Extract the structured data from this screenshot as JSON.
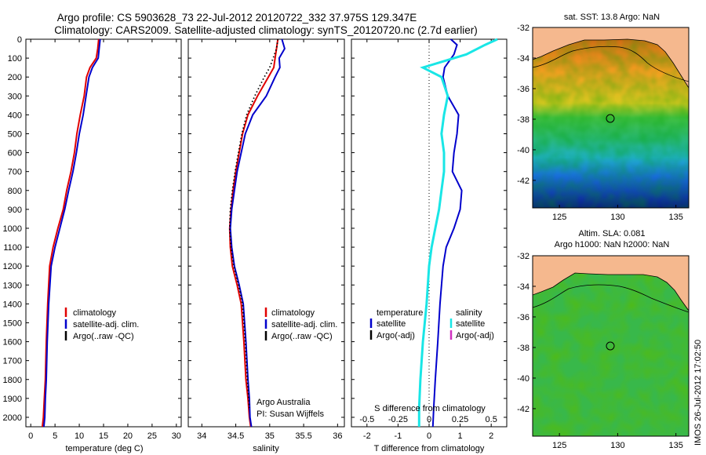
{
  "title": {
    "line1": "Argo profile: CS 5903628_73 22-Jul-2012 20120722_332 37.975S 129.347E",
    "line2": "Climatology: CARS2009. Satellite-adjusted climatology: synTS_20120720.nc (2.7d earlier)"
  },
  "colors": {
    "climatology": "#e00000",
    "satellite": "#0000cc",
    "argo": "#000000",
    "salinity_satellite": "#19e6e6",
    "salinity_argo": "#d030c0"
  },
  "depth_axis": {
    "ylim": [
      0,
      2050
    ],
    "ticks": [
      "0",
      "100",
      "200",
      "300",
      "400",
      "500",
      "600",
      "700",
      "800",
      "900",
      "1000",
      "1100",
      "1200",
      "1300",
      "1400",
      "1500",
      "1600",
      "1700",
      "1800",
      "1900",
      "2000"
    ]
  },
  "legend": {
    "climatology": "climatology",
    "satellite": "satellite-adj. clim.",
    "argo": "Argo(..raw -QC)",
    "temperature_header": "temperature",
    "salinity_header": "salinity",
    "satellite_short": "satellite",
    "argo_adj": "Argo(-adj)"
  },
  "credits": {
    "line1": "Argo Australia",
    "line2": "PI: Susan Wijffels"
  },
  "chart_data": [
    {
      "type": "line",
      "xlabel": "temperature (deg C)",
      "xlim": [
        -1,
        31
      ],
      "xticks": [
        "0",
        "5",
        "10",
        "15",
        "20",
        "25",
        "30"
      ],
      "ylim": [
        2050,
        0
      ],
      "series": [
        {
          "name": "climatology",
          "x": [
            14.0,
            13.8,
            13.5,
            12.2,
            11.5,
            11.0,
            10.2,
            9.5,
            9.0,
            8.3,
            7.4,
            6.7,
            5.6,
            4.6,
            3.9,
            3.5,
            3.2,
            3.0,
            2.8,
            2.6,
            2.4
          ],
          "y": [
            0,
            50,
            100,
            150,
            200,
            300,
            400,
            500,
            600,
            700,
            800,
            900,
            1000,
            1100,
            1200,
            1400,
            1600,
            1800,
            1900,
            2000,
            2050
          ]
        },
        {
          "name": "satellite-adj. clim.",
          "x": [
            14.3,
            14.1,
            13.9,
            12.7,
            12.0,
            11.4,
            10.8,
            10.0,
            9.4,
            8.7,
            7.8,
            7.0,
            6.0,
            5.0,
            4.2,
            3.7,
            3.4,
            3.2,
            3.0,
            2.9,
            2.7
          ],
          "y": [
            0,
            50,
            100,
            150,
            200,
            300,
            400,
            500,
            600,
            700,
            800,
            900,
            1000,
            1100,
            1200,
            1400,
            1600,
            1800,
            1900,
            2000,
            2050
          ]
        }
      ]
    },
    {
      "type": "line",
      "xlabel": "salinity",
      "xlim": [
        33.8,
        36.1
      ],
      "xticks": [
        "34",
        "34.5",
        "35",
        "35.5",
        "36"
      ],
      "ylim": [
        2050,
        0
      ],
      "series": [
        {
          "name": "climatology",
          "x": [
            35.12,
            35.1,
            35.08,
            35.06,
            34.98,
            34.82,
            34.68,
            34.6,
            34.55,
            34.5,
            34.46,
            34.43,
            34.41,
            34.42,
            34.45,
            34.52,
            34.58,
            34.62,
            34.65,
            34.68,
            34.7,
            34.72
          ],
          "y": [
            0,
            50,
            100,
            150,
            200,
            300,
            400,
            500,
            600,
            700,
            800,
            900,
            1000,
            1100,
            1200,
            1300,
            1400,
            1600,
            1800,
            1900,
            2000,
            2050
          ]
        },
        {
          "name": "satellite-adj. clim.",
          "x": [
            35.18,
            35.22,
            35.14,
            35.15,
            35.08,
            34.95,
            34.75,
            34.64,
            34.58,
            34.52,
            34.48,
            34.44,
            34.42,
            34.44,
            34.48,
            34.55,
            34.61,
            34.65,
            34.68,
            34.7,
            34.71,
            34.73
          ],
          "y": [
            0,
            50,
            100,
            150,
            200,
            300,
            400,
            500,
            600,
            700,
            800,
            900,
            1000,
            1100,
            1200,
            1300,
            1400,
            1600,
            1800,
            1900,
            2000,
            2050
          ]
        },
        {
          "name": "Argo(..raw -QC)",
          "x": [
            35.12,
            35.1,
            35.05,
            35.0,
            34.92,
            34.78,
            34.66,
            34.59,
            34.54,
            34.49,
            34.45,
            34.42,
            34.41,
            34.43,
            34.47,
            34.54,
            34.6,
            34.64,
            34.67,
            34.7
          ],
          "y": [
            0,
            50,
            100,
            150,
            200,
            300,
            400,
            500,
            600,
            700,
            800,
            900,
            1000,
            1100,
            1200,
            1300,
            1400,
            1600,
            1800,
            1950
          ]
        }
      ]
    },
    {
      "type": "line",
      "xlabel": "T difference from climatology",
      "xlabel_top": "S difference from climatology",
      "xlim": [
        -2.5,
        2.5
      ],
      "xticks": [
        "-2",
        "-1",
        "0",
        "1",
        "2"
      ],
      "xticks_top": [
        "-0.5",
        "-0.25",
        "0",
        "0.25",
        "0.5"
      ],
      "ylim": [
        2050,
        0
      ],
      "series": [
        {
          "name": "temperature satellite",
          "x": [
            0.7,
            0.9,
            0.8,
            0.5,
            0.45,
            0.6,
            0.95,
            0.9,
            0.8,
            0.75,
            1.05,
            1.0,
            0.8,
            0.55,
            0.45,
            0.35,
            0.28,
            0.2,
            0.15,
            0.12
          ],
          "y": [
            0,
            30,
            80,
            150,
            200,
            300,
            400,
            500,
            600,
            700,
            800,
            900,
            1000,
            1100,
            1200,
            1400,
            1600,
            1800,
            1950,
            2050
          ]
        },
        {
          "name": "salinity satellite",
          "x": [
            0.55,
            0.45,
            0.3,
            -0.05,
            0.1,
            0.15,
            0.12,
            0.1,
            0.12,
            0.12,
            0.1,
            0.08,
            0.05,
            0.02,
            0.0,
            -0.02,
            -0.05,
            -0.07,
            -0.08,
            -0.08
          ],
          "y": [
            0,
            30,
            80,
            150,
            200,
            300,
            400,
            500,
            600,
            700,
            800,
            900,
            1000,
            1100,
            1200,
            1400,
            1600,
            1800,
            1950,
            2050
          ]
        }
      ]
    }
  ],
  "maps": [
    {
      "title_lines": [
        "sat. SST: 13.8  Argo: NaN"
      ],
      "xticks": [
        "125",
        "130",
        "135"
      ],
      "yticks": [
        "-32",
        "-34",
        "-36",
        "-38",
        "-40",
        "-42"
      ]
    },
    {
      "title_lines": [
        "Altim. SLA: 0.081",
        "Argo h1000: NaN h2000: NaN"
      ],
      "xticks": [
        "125",
        "130",
        "135"
      ],
      "yticks": [
        "-32",
        "-34",
        "-36",
        "-38",
        "-40",
        "-42"
      ]
    }
  ],
  "side_label": "IMOS 26-Jul-2012 17:02:50"
}
